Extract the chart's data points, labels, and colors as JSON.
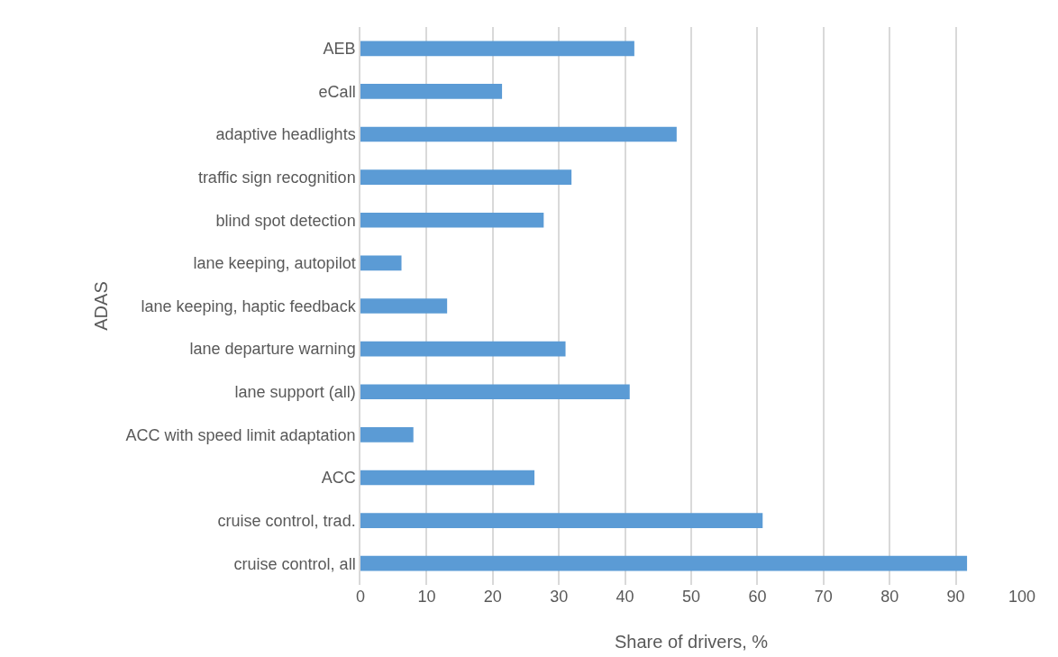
{
  "chart_data": {
    "type": "bar",
    "orientation": "horizontal",
    "xlabel": "Share of drivers, %",
    "ylabel": "ADAS",
    "categories": [
      "AEB",
      "eCall",
      "adaptive headlights",
      "traffic sign recognition",
      "blind spot detection",
      "lane keeping, autopilot",
      "lane keeping, haptic feedback",
      "lane departure warning",
      "lane support (all)",
      "ACC with speed limit adaptation",
      "ACC",
      "cruise control, trad.",
      "cruise control, all"
    ],
    "values": [
      41.4,
      21.4,
      47.8,
      31.9,
      27.7,
      6.2,
      13.1,
      31.0,
      40.7,
      8.0,
      26.3,
      60.8,
      91.7
    ],
    "color": "#5b9bd5",
    "xlim": [
      0,
      100
    ],
    "xticks": [
      0,
      10,
      20,
      30,
      40,
      50,
      60,
      70,
      80,
      90,
      100
    ],
    "grid": "x",
    "legend": false
  }
}
